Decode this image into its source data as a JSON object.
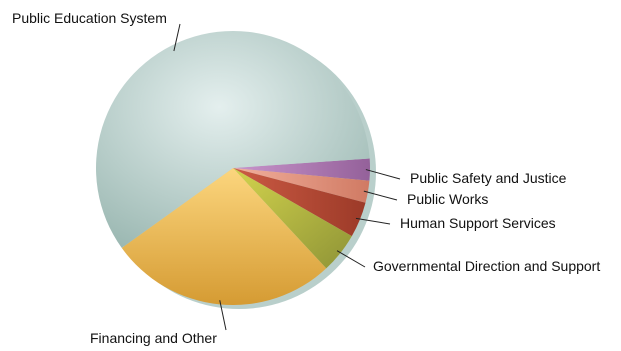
{
  "chart_data": {
    "type": "pie",
    "title": "",
    "legend": "none",
    "categories": [
      "Public Safety and Justice",
      "Public Works",
      "Human Support Services",
      "Governmental Direction and Support",
      "Financing and Other",
      "Public Education System"
    ],
    "values": [
      2.6,
      2.6,
      4.2,
      4.8,
      27.0,
      58.8
    ],
    "unit": "percent (estimated)",
    "colors": {
      "Public Safety and Justice": "#b07ab3",
      "Public Works": "#e0907a",
      "Human Support Services": "#b24a35",
      "Governmental Direction and Support": "#b6b83e",
      "Financing and Other": "#eab55a",
      "Public Education System": "#c4dad8"
    }
  }
}
